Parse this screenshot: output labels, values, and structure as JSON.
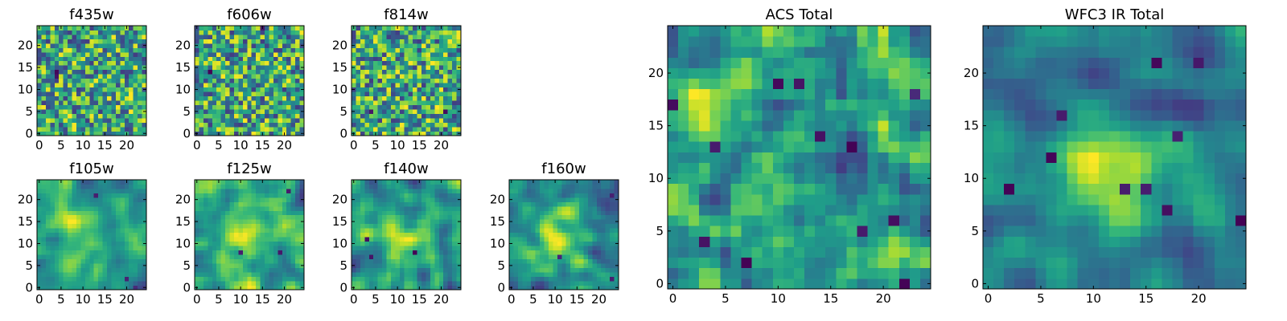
{
  "chart_data": [
    {
      "type": "heatmap",
      "title": "f435w",
      "xticks": [
        "0",
        "5",
        "10",
        "15",
        "20"
      ],
      "yticks": [
        "0",
        "5",
        "10",
        "15",
        "20"
      ],
      "grid": false,
      "colormap": "viridis",
      "smooth": 0,
      "extra_low": 2,
      "seed": 11,
      "blobs": []
    },
    {
      "type": "heatmap",
      "title": "f606w",
      "xticks": [
        "0",
        "5",
        "10",
        "15",
        "20"
      ],
      "yticks": [
        "0",
        "5",
        "10",
        "15",
        "20"
      ],
      "grid": false,
      "colormap": "viridis",
      "smooth": 0,
      "extra_low": 2,
      "seed": 23,
      "blobs": []
    },
    {
      "type": "heatmap",
      "title": "f814w",
      "xticks": [
        "0",
        "5",
        "10",
        "15",
        "20"
      ],
      "yticks": [
        "0",
        "5",
        "10",
        "15",
        "20"
      ],
      "grid": false,
      "colormap": "viridis",
      "smooth": 0,
      "extra_low": 2,
      "seed": 37,
      "blobs": []
    },
    {
      "type": "heatmap",
      "title": "f105w",
      "xticks": [
        "0",
        "5",
        "10",
        "15",
        "20"
      ],
      "yticks": [
        "0",
        "5",
        "10",
        "15",
        "20"
      ],
      "grid": false,
      "colormap": "viridis",
      "smooth": 2,
      "extra_low": 3,
      "seed": 41,
      "blobs": [
        [
          10,
          12,
          0.3,
          5
        ]
      ]
    },
    {
      "type": "heatmap",
      "title": "f125w",
      "xticks": [
        "0",
        "5",
        "10",
        "15",
        "20"
      ],
      "yticks": [
        "0",
        "5",
        "10",
        "15",
        "20"
      ],
      "grid": false,
      "colormap": "viridis",
      "smooth": 2,
      "extra_low": 3,
      "seed": 53,
      "blobs": [
        [
          11,
          11,
          0.25,
          5
        ]
      ]
    },
    {
      "type": "heatmap",
      "title": "f140w",
      "xticks": [
        "0",
        "5",
        "10",
        "15",
        "20"
      ],
      "yticks": [
        "0",
        "5",
        "10",
        "15",
        "20"
      ],
      "grid": false,
      "colormap": "viridis",
      "smooth": 2,
      "extra_low": 3,
      "seed": 67,
      "blobs": [
        [
          11,
          11,
          0.25,
          5
        ]
      ]
    },
    {
      "type": "heatmap",
      "title": "f160w",
      "xticks": [
        "0",
        "5",
        "10",
        "15",
        "20"
      ],
      "yticks": [
        "0",
        "5",
        "10",
        "15",
        "20"
      ],
      "grid": false,
      "colormap": "viridis",
      "smooth": 2,
      "extra_low": 3,
      "seed": 71,
      "blobs": [
        [
          11,
          11,
          0.3,
          5
        ]
      ]
    },
    {
      "type": "heatmap",
      "title": "ACS Total",
      "xticks": [
        "0",
        "5",
        "10",
        "15",
        "20"
      ],
      "yticks": [
        "0",
        "5",
        "10",
        "15",
        "20"
      ],
      "grid": false,
      "colormap": "viridis",
      "smooth": 1,
      "extra_low": 12,
      "seed": 83,
      "blobs": [
        [
          9,
          6,
          0.2,
          3
        ]
      ]
    },
    {
      "type": "heatmap",
      "title": "WFC3 IR Total",
      "xticks": [
        "0",
        "5",
        "10",
        "15",
        "20"
      ],
      "yticks": [
        "0",
        "5",
        "10",
        "15",
        "20"
      ],
      "grid": false,
      "colormap": "viridis",
      "smooth": 2,
      "extra_low": 10,
      "seed": 97,
      "blobs": [
        [
          12,
          11,
          0.9,
          4
        ]
      ]
    }
  ]
}
